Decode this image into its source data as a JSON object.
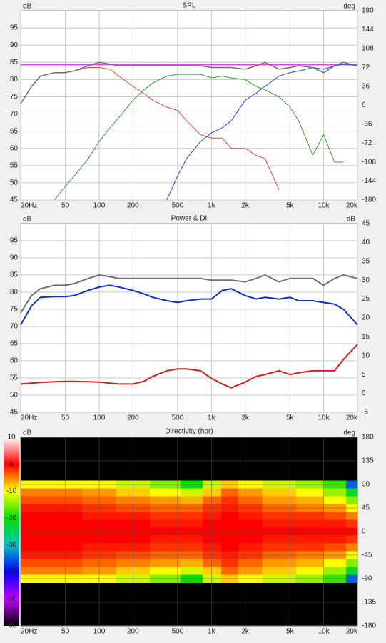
{
  "chart_data": [
    {
      "type": "line",
      "title": "SPL",
      "ylabel": "dB",
      "y2label": "deg",
      "xscale": "log",
      "grid": true,
      "xlim": [
        20,
        20000
      ],
      "xticks": [
        {
          "value": 20,
          "label": "20Hz"
        },
        50,
        100,
        200,
        500,
        {
          "value": 1000,
          "label": "1k"
        },
        {
          "value": 2000,
          "label": "2k"
        },
        {
          "value": 5000,
          "label": "5k"
        },
        {
          "value": 10000,
          "label": "10k"
        },
        {
          "value": 20000,
          "label": "20k"
        }
      ],
      "ylim": [
        45,
        100
      ],
      "yticks": [
        95,
        90,
        85,
        80,
        75,
        70,
        65,
        60,
        55,
        50,
        45
      ],
      "y2lim": [
        -180,
        180
      ],
      "y2ticks": [
        180,
        144,
        108,
        72,
        36,
        0,
        -36,
        -72,
        -108,
        -144,
        -180
      ],
      "x": [
        20,
        25,
        30,
        40,
        50,
        60,
        80,
        100,
        125,
        150,
        200,
        250,
        300,
        400,
        500,
        600,
        800,
        1000,
        1250,
        1500,
        2000,
        2500,
        3000,
        4000,
        5000,
        6000,
        8000,
        10000,
        12500,
        15000,
        20000
      ],
      "series": [
        {
          "color": "#e040e0",
          "width": 1.5,
          "values": [
            84.3,
            84.3,
            84.3,
            84.3,
            84.3,
            84.3,
            84.3,
            84.3,
            84.3,
            84.3,
            84.3,
            84.3,
            84.3,
            84.3,
            84.3,
            84.3,
            84.3,
            84.3,
            84.3,
            84.3,
            84.3,
            84.3,
            84.3,
            84.3,
            84.3,
            84.3,
            84.3,
            84.3,
            84.3,
            84.3,
            84.3
          ]
        },
        {
          "color": "#e04535",
          "width": 1,
          "values": [
            73,
            78,
            81,
            82,
            82,
            82.5,
            83.5,
            83.5,
            83,
            81,
            78,
            76,
            74,
            72,
            71,
            68,
            64,
            63,
            63,
            60,
            60,
            58,
            57,
            48,
            null,
            null,
            null,
            null,
            null,
            null,
            null
          ]
        },
        {
          "color": "#30a030",
          "width": 1,
          "values": [
            null,
            null,
            null,
            45,
            49,
            52,
            57,
            62,
            66,
            69,
            74,
            77,
            79,
            81,
            81.5,
            81.5,
            81.5,
            80.5,
            81,
            80.5,
            80,
            78,
            77,
            75,
            72,
            68,
            58,
            64,
            56,
            56,
            null
          ]
        },
        {
          "color": "#3040e0",
          "width": 1,
          "values": [
            null,
            null,
            null,
            null,
            null,
            null,
            null,
            null,
            null,
            null,
            null,
            null,
            null,
            45,
            52,
            57,
            62,
            64.5,
            66,
            68,
            74,
            76,
            78,
            81,
            82,
            82.5,
            83.5,
            83,
            84,
            84.5,
            84
          ]
        },
        {
          "color": "#707070",
          "width": 1.5,
          "values": [
            73,
            78,
            81,
            82,
            82,
            82.5,
            84,
            85,
            84.5,
            84,
            84,
            84,
            84,
            84,
            84,
            84,
            84,
            83.5,
            83.5,
            83.5,
            83,
            84,
            85,
            83,
            83.5,
            84,
            83.5,
            82,
            84,
            85,
            84
          ]
        }
      ]
    },
    {
      "type": "line",
      "title": "Power & DI",
      "ylabel": "dB",
      "y2label": "dB",
      "xscale": "log",
      "grid": true,
      "xlim": [
        20,
        20000
      ],
      "xticks": [
        {
          "value": 20,
          "label": "20Hz"
        },
        50,
        100,
        200,
        500,
        {
          "value": 1000,
          "label": "1k"
        },
        {
          "value": 2000,
          "label": "2k"
        },
        {
          "value": 5000,
          "label": "5k"
        },
        {
          "value": 10000,
          "label": "10k"
        },
        {
          "value": 20000,
          "label": "20k"
        }
      ],
      "ylim": [
        45,
        100
      ],
      "yticks": [
        95,
        90,
        85,
        80,
        75,
        70,
        65,
        60,
        55,
        50,
        45
      ],
      "y2lim": [
        -5,
        45
      ],
      "y2ticks": [
        45,
        40,
        35,
        30,
        25,
        20,
        15,
        10,
        5,
        0,
        -5
      ],
      "x": [
        20,
        25,
        30,
        40,
        50,
        60,
        80,
        100,
        125,
        150,
        200,
        250,
        300,
        400,
        500,
        600,
        800,
        1000,
        1250,
        1500,
        2000,
        2500,
        3000,
        4000,
        5000,
        6000,
        8000,
        10000,
        12500,
        15000,
        20000
      ],
      "series": [
        {
          "color": "#707070",
          "width": 2,
          "values": [
            74,
            79,
            81,
            82,
            82,
            82.5,
            84,
            85,
            84.5,
            84,
            84,
            84,
            84,
            84,
            84,
            84,
            84,
            83.5,
            83.5,
            83.5,
            83,
            84,
            85,
            83,
            84,
            84,
            84,
            82,
            84,
            85,
            84
          ]
        },
        {
          "color": "#1030c0",
          "width": 2,
          "values": [
            70.5,
            76,
            78.5,
            78.7,
            78.7,
            79,
            80.5,
            81.5,
            82,
            81.5,
            80.5,
            79.5,
            78.5,
            77.5,
            77,
            77.5,
            78,
            78,
            80.5,
            81,
            79,
            78,
            78.5,
            78,
            78.5,
            77.5,
            77.5,
            77,
            76.5,
            75,
            70.5
          ]
        },
        {
          "color": "#d02020",
          "width": 2,
          "axis": "y2",
          "values": [
            2.5,
            2.7,
            2.9,
            3.1,
            3.2,
            3.2,
            3.1,
            3.0,
            2.7,
            2.5,
            2.5,
            3.2,
            4.5,
            6,
            6.5,
            6.5,
            6,
            4,
            2.5,
            1.5,
            3,
            4.5,
            5,
            6,
            5,
            5.5,
            6,
            6,
            6,
            9,
            13
          ]
        }
      ]
    },
    {
      "type": "heatmap",
      "title": "Directivity (hor)",
      "zlabel": "dB",
      "y2label": "deg",
      "xscale": "log",
      "grid": true,
      "xlim": [
        20,
        20000
      ],
      "xticks": [
        {
          "value": 20,
          "label": "20Hz"
        },
        50,
        100,
        200,
        500,
        {
          "value": 1000,
          "label": "1k"
        },
        {
          "value": 2000,
          "label": "2k"
        },
        {
          "value": 5000,
          "label": "5k"
        },
        {
          "value": 10000,
          "label": "10k"
        },
        {
          "value": 20000,
          "label": "20k"
        }
      ],
      "zlim": [
        -60,
        10
      ],
      "zticks": [
        10,
        0,
        -10,
        -20,
        -30,
        -40,
        -50,
        -60
      ],
      "colors": [
        "#ffffff",
        "#ff0000",
        "#ffff00",
        "#00e000",
        "#00c0c0",
        "#0000ff",
        "#c000ff",
        "#000000"
      ],
      "y2lim": [
        -180,
        180
      ],
      "y2ticks": [
        180,
        135,
        90,
        45,
        0,
        -45,
        -90,
        -135,
        -180
      ],
      "x": [
        20,
        50,
        100,
        200,
        400,
        700,
        1000,
        1500,
        2000,
        4000,
        8000,
        12500,
        20000
      ],
      "y": [
        90,
        75,
        60,
        45,
        30,
        15,
        0,
        -15,
        -30,
        -45,
        -60,
        -75,
        -90
      ],
      "values": [
        [
          -10,
          -10,
          -10,
          -12,
          -15,
          -20,
          -12,
          -8,
          -10,
          -12,
          -14,
          -18,
          -35
        ],
        [
          -5,
          -5,
          -6,
          -8,
          -10,
          -12,
          -8,
          -4,
          -6,
          -8,
          -10,
          -14,
          -22
        ],
        [
          -3,
          -3,
          -4,
          -5,
          -6,
          -7,
          -4,
          -2,
          -4,
          -6,
          -7,
          -10,
          -15
        ],
        [
          -1,
          -1,
          -2,
          -3,
          -4,
          -4,
          -2,
          -1,
          -2,
          -4,
          -5,
          -6,
          -10
        ],
        [
          0,
          0,
          -1,
          -1,
          -2,
          -2,
          -1,
          0,
          -1,
          -2,
          -2,
          -3,
          -5
        ],
        [
          0,
          0,
          0,
          0,
          -1,
          -1,
          0,
          0,
          0,
          -1,
          -1,
          -1,
          -2
        ],
        [
          0,
          0,
          0,
          0,
          0,
          0,
          0,
          0,
          0,
          0,
          0,
          0,
          0
        ],
        [
          0,
          0,
          0,
          0,
          -1,
          -1,
          0,
          0,
          0,
          -1,
          -1,
          -1,
          -2
        ],
        [
          0,
          0,
          -1,
          -1,
          -2,
          -2,
          -1,
          0,
          -1,
          -2,
          -2,
          -3,
          -5
        ],
        [
          -1,
          -1,
          -2,
          -3,
          -4,
          -4,
          -2,
          -1,
          -2,
          -4,
          -5,
          -6,
          -10
        ],
        [
          -3,
          -3,
          -4,
          -5,
          -6,
          -7,
          -4,
          -2,
          -4,
          -6,
          -7,
          -10,
          -15
        ],
        [
          -5,
          -5,
          -6,
          -8,
          -10,
          -12,
          -8,
          -4,
          -6,
          -8,
          -10,
          -14,
          -22
        ],
        [
          -10,
          -10,
          -10,
          -12,
          -15,
          -20,
          -12,
          -8,
          -10,
          -12,
          -14,
          -18,
          -35
        ]
      ]
    }
  ]
}
